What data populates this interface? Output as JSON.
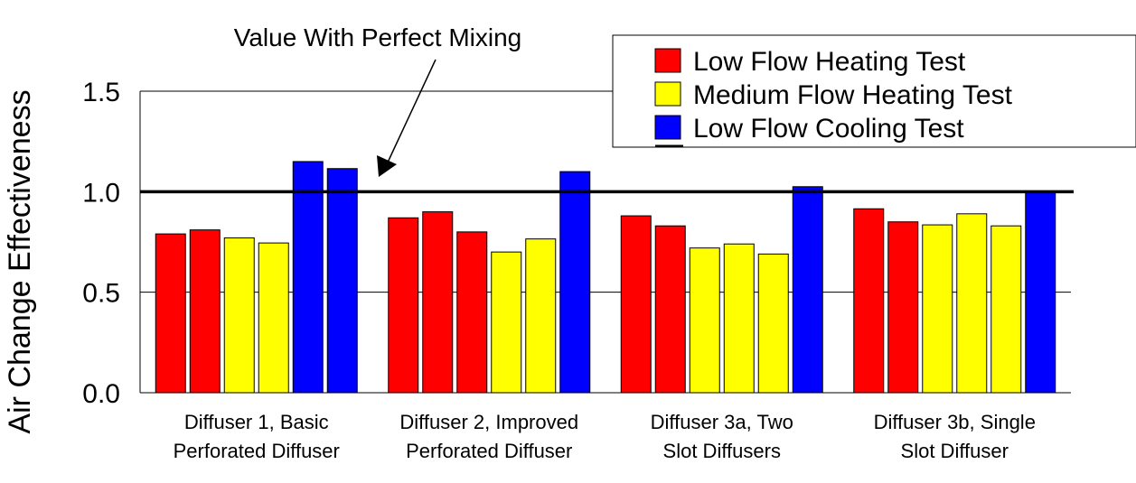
{
  "chart_data": {
    "type": "bar",
    "ylabel": "Air Change Effectiveness",
    "ylim": [
      0,
      1.5
    ],
    "yticks": [
      "0.0",
      "0.5",
      "1.0",
      "1.5"
    ],
    "grid": true,
    "legend_position": "top-right",
    "categories": [
      [
        "Diffuser 1, Basic",
        "Perforated Diffuser"
      ],
      [
        "Diffuser 2, Improved",
        "Perforated Diffuser"
      ],
      [
        "Diffuser 3a, Two",
        "Slot Diffusers"
      ],
      [
        "Diffuser 3b, Single",
        "Slot Diffuser"
      ]
    ],
    "series": [
      {
        "name": "Low Flow Heating Test",
        "color": "#ff0000"
      },
      {
        "name": "Medium Flow Heating Test",
        "color": "#ffff00"
      },
      {
        "name": "Low Flow Cooling Test",
        "color": "#0000ff"
      }
    ],
    "groups": [
      {
        "bars": [
          {
            "s": 0,
            "v": 0.79
          },
          {
            "s": 0,
            "v": 0.81
          },
          {
            "s": 1,
            "v": 0.77
          },
          {
            "s": 1,
            "v": 0.745
          },
          {
            "s": 2,
            "v": 1.15
          },
          {
            "s": 2,
            "v": 1.115
          }
        ]
      },
      {
        "bars": [
          {
            "s": 0,
            "v": 0.87
          },
          {
            "s": 0,
            "v": 0.9
          },
          {
            "s": 0,
            "v": 0.8
          },
          {
            "s": 1,
            "v": 0.7
          },
          {
            "s": 1,
            "v": 0.765
          },
          {
            "s": 2,
            "v": 1.1
          }
        ]
      },
      {
        "bars": [
          {
            "s": 0,
            "v": 0.88
          },
          {
            "s": 0,
            "v": 0.83
          },
          {
            "s": 1,
            "v": 0.72
          },
          {
            "s": 1,
            "v": 0.74
          },
          {
            "s": 1,
            "v": 0.69
          },
          {
            "s": 2,
            "v": 1.025
          }
        ]
      },
      {
        "bars": [
          {
            "s": 0,
            "v": 0.915
          },
          {
            "s": 0,
            "v": 0.85
          },
          {
            "s": 1,
            "v": 0.835
          },
          {
            "s": 1,
            "v": 0.89
          },
          {
            "s": 1,
            "v": 0.83
          },
          {
            "s": 2,
            "v": 1.0
          }
        ]
      }
    ],
    "reference_line": {
      "value": 1.0,
      "label": "Value With Perfect Mixing"
    }
  }
}
